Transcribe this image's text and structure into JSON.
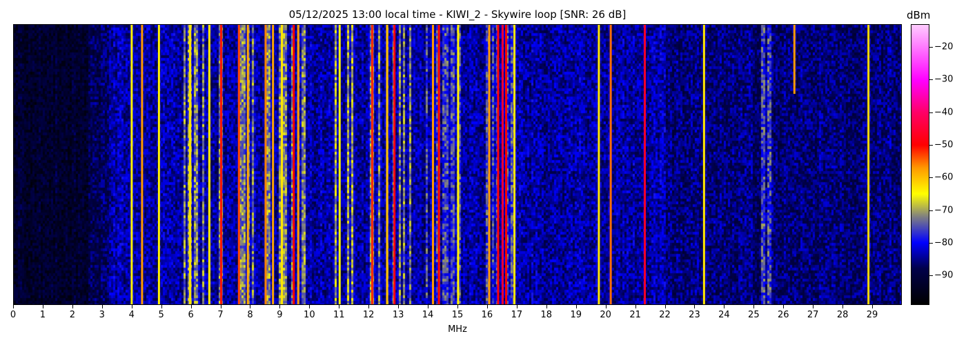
{
  "chart_data": {
    "type": "heatmap",
    "title": "05/12/2025 13:00 local time - KIWI_2 - Skywire loop [SNR: 26 dB]",
    "xlabel": "MHz",
    "xlim": [
      0,
      30
    ],
    "xticks": [
      0,
      1,
      2,
      3,
      4,
      5,
      6,
      7,
      8,
      9,
      10,
      11,
      12,
      13,
      14,
      15,
      16,
      17,
      18,
      19,
      20,
      21,
      22,
      23,
      24,
      25,
      26,
      27,
      28,
      29
    ],
    "colorbar": {
      "label": "dBm",
      "range": [
        -99,
        -13
      ],
      "ticks": [
        -20,
        -30,
        -40,
        -50,
        -60,
        -70,
        -80,
        -90
      ],
      "colormap": [
        {
          "v": -99,
          "color": "#000000"
        },
        {
          "v": -88,
          "color": "#00004a"
        },
        {
          "v": -80,
          "color": "#0000ff"
        },
        {
          "v": -72,
          "color": "#808080"
        },
        {
          "v": -65,
          "color": "#ffff00"
        },
        {
          "v": -57,
          "color": "#ff9900"
        },
        {
          "v": -50,
          "color": "#ff0000"
        },
        {
          "v": -40,
          "color": "#ff0066"
        },
        {
          "v": -30,
          "color": "#ff00ff"
        },
        {
          "v": -13,
          "color": "#ffccff"
        }
      ]
    },
    "noise_floor": [
      {
        "from": 0,
        "to": 3,
        "dbm": -92
      },
      {
        "from": 3,
        "to": 17,
        "dbm": -84
      },
      {
        "from": 17,
        "to": 22,
        "dbm": -84
      },
      {
        "from": 22,
        "to": 30,
        "dbm": -86
      }
    ],
    "busy_bands": [
      {
        "from": 5.7,
        "to": 10.0,
        "dbm": -72
      },
      {
        "from": 10.8,
        "to": 11.5,
        "dbm": -69
      },
      {
        "from": 12.0,
        "to": 13.5,
        "dbm": -72
      },
      {
        "from": 13.9,
        "to": 15.2,
        "dbm": -76
      },
      {
        "from": 15.8,
        "to": 16.9,
        "dbm": -76
      },
      {
        "from": 25.2,
        "to": 25.6,
        "dbm": -76
      }
    ],
    "carriers": [
      {
        "mhz": 3.98,
        "dbm": -64
      },
      {
        "mhz": 4.33,
        "dbm": -57
      },
      {
        "mhz": 4.9,
        "dbm": -64
      },
      {
        "mhz": 5.95,
        "dbm": -63
      },
      {
        "mhz": 6.6,
        "dbm": -63
      },
      {
        "mhz": 7.0,
        "dbm": -51
      },
      {
        "mhz": 7.6,
        "dbm": -53
      },
      {
        "mhz": 7.9,
        "dbm": -58
      },
      {
        "mhz": 8.5,
        "dbm": -56
      },
      {
        "mhz": 8.75,
        "dbm": -58
      },
      {
        "mhz": 9.05,
        "dbm": -63
      },
      {
        "mhz": 9.45,
        "dbm": -50
      },
      {
        "mhz": 9.6,
        "dbm": -57
      },
      {
        "mhz": 11.0,
        "dbm": -64
      },
      {
        "mhz": 12.1,
        "dbm": -52
      },
      {
        "mhz": 12.6,
        "dbm": -60
      },
      {
        "mhz": 12.85,
        "dbm": -48
      },
      {
        "mhz": 14.15,
        "dbm": -57
      },
      {
        "mhz": 14.35,
        "dbm": -50
      },
      {
        "mhz": 15.0,
        "dbm": -64
      },
      {
        "mhz": 16.05,
        "dbm": -57
      },
      {
        "mhz": 16.35,
        "dbm": -49
      },
      {
        "mhz": 16.5,
        "dbm": -45
      },
      {
        "mhz": 16.62,
        "dbm": -50
      },
      {
        "mhz": 16.9,
        "dbm": -63
      },
      {
        "mhz": 19.75,
        "dbm": -63
      },
      {
        "mhz": 20.15,
        "dbm": -55
      },
      {
        "mhz": 21.3,
        "dbm": -46
      },
      {
        "mhz": 23.3,
        "dbm": -63
      },
      {
        "mhz": 26.35,
        "dbm": -57
      },
      {
        "mhz": 28.85,
        "dbm": -62
      }
    ]
  }
}
